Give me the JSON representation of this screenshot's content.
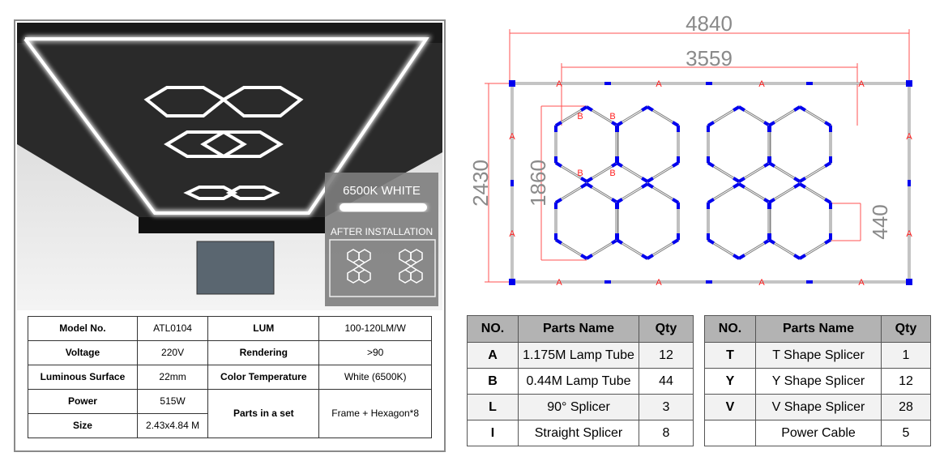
{
  "photo": {
    "color_label": "6500K WHITE",
    "after_label": "AFTER INSTALLATION"
  },
  "specs": [
    {
      "k1": "Model No.",
      "v1": "ATL0104",
      "k2": "LUM",
      "v2": "100-120LM/W"
    },
    {
      "k1": "Voltage",
      "v1": "220V",
      "k2": "Rendering",
      "v2": ">90"
    },
    {
      "k1": "Luminous Surface",
      "v1": "22mm",
      "k2": "Color Temperature",
      "v2": "White (6500K)"
    },
    {
      "k1": "Power",
      "v1": "515W",
      "k2": "Parts in a set",
      "v2": "Frame + Hexagon*8"
    },
    {
      "k1": "Size",
      "v1": "2.43x4.84 M"
    }
  ],
  "drawing": {
    "overall_width": "4840",
    "inner_width": "3559",
    "overall_height": "2430",
    "hex_height": "1860",
    "segment": "440",
    "label_a": "A",
    "label_b": "B",
    "frame_color": "#808080",
    "connector_color": "#0000ee",
    "dimension_color": "#ff4040"
  },
  "parts_left": {
    "headers": [
      "NO.",
      "Parts Name",
      "Qty"
    ],
    "rows": [
      [
        "A",
        "1.175M Lamp Tube",
        "12"
      ],
      [
        "B",
        "0.44M Lamp Tube",
        "44"
      ],
      [
        "L",
        "90° Splicer",
        "3"
      ],
      [
        "I",
        "Straight Splicer",
        "8"
      ]
    ]
  },
  "parts_right": {
    "headers": [
      "NO.",
      "Parts Name",
      "Qty"
    ],
    "rows": [
      [
        "T",
        "T Shape Splicer",
        "1"
      ],
      [
        "Y",
        "Y Shape Splicer",
        "12"
      ],
      [
        "V",
        "V Shape Splicer",
        "28"
      ],
      [
        "",
        "Power Cable",
        "5"
      ]
    ]
  }
}
